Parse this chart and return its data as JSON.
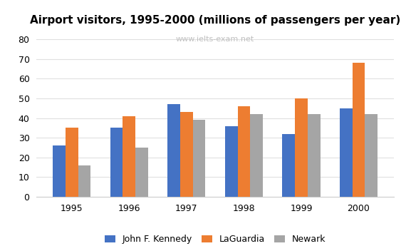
{
  "title": "Airport visitors, 1995-2000 (millions of passengers per year)",
  "watermark": "www.ielts-exam.net",
  "years": [
    1995,
    1996,
    1997,
    1998,
    1999,
    2000
  ],
  "series": {
    "John F. Kennedy": [
      26,
      35,
      47,
      36,
      32,
      45
    ],
    "LaGuardia": [
      35,
      41,
      43,
      46,
      50,
      68
    ],
    "Newark": [
      16,
      25,
      39,
      42,
      42,
      42
    ]
  },
  "colors": {
    "John F. Kennedy": "#4472C4",
    "LaGuardia": "#ED7D31",
    "Newark": "#A5A5A5"
  },
  "ylim": [
    0,
    85
  ],
  "yticks": [
    0,
    10,
    20,
    30,
    40,
    50,
    60,
    70,
    80
  ],
  "background_color": "#ffffff",
  "title_fontsize": 11,
  "tick_fontsize": 9,
  "legend_fontsize": 9,
  "bar_width": 0.22,
  "grid_color": "#e0e0e0",
  "watermark_color": "#c0c0c0"
}
